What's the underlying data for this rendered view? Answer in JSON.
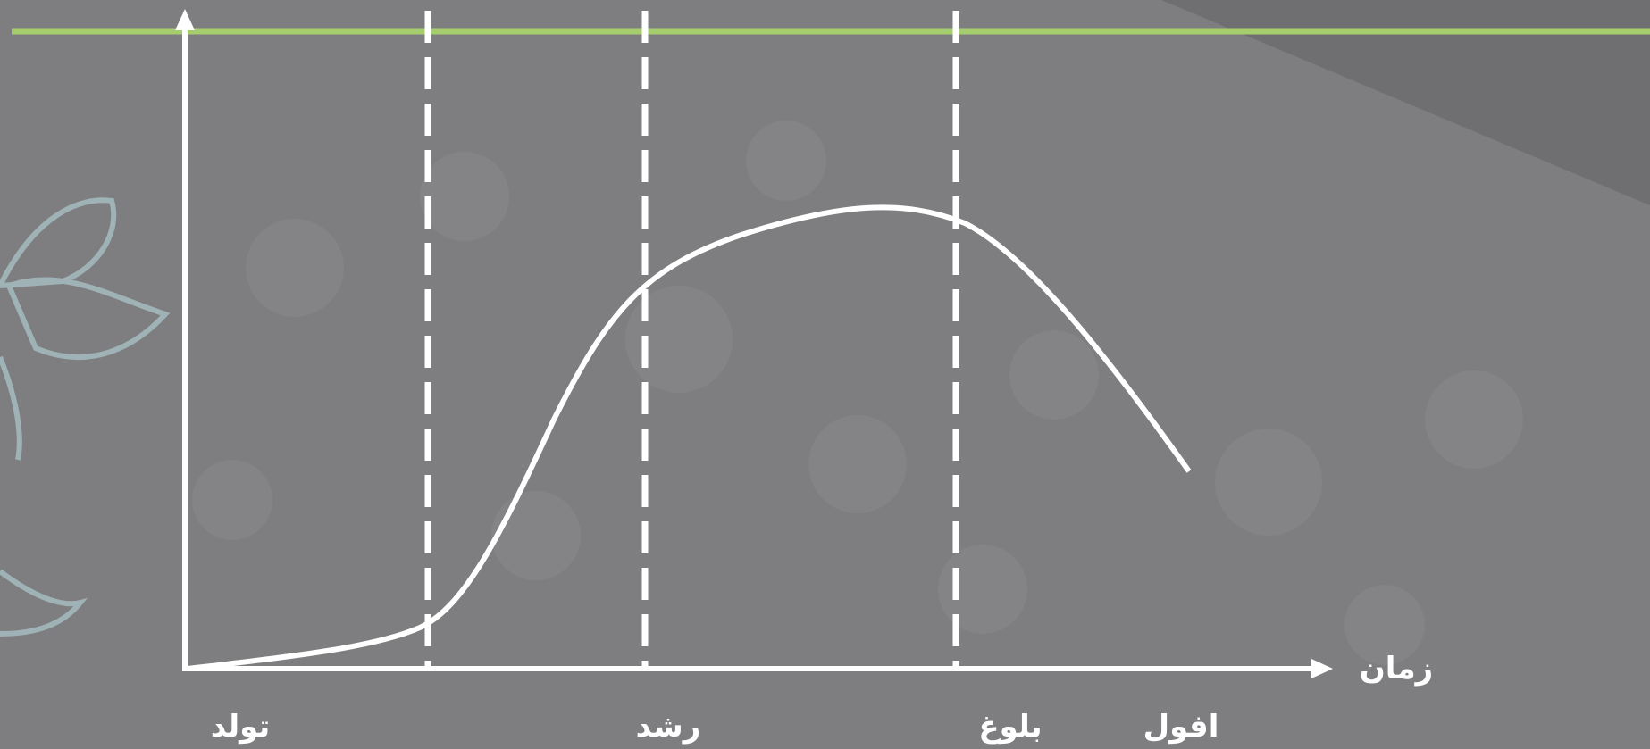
{
  "stages": [
    "تولد",
    "رشد",
    "بلوغ",
    "افول"
  ],
  "x_axis_label": "زمان"
}
